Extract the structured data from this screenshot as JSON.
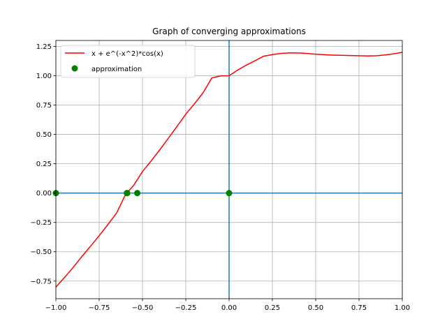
{
  "chart_data": {
    "type": "line",
    "title": "Graph of converging approximations",
    "xlabel": "",
    "ylabel": "",
    "xlim": [
      -1.0,
      1.0
    ],
    "ylim": [
      -0.9,
      1.3
    ],
    "x_ticks": [
      -1.0,
      -0.75,
      -0.5,
      -0.25,
      0.0,
      0.25,
      0.5,
      0.75,
      1.0
    ],
    "x_tick_labels": [
      "−1.00",
      "−0.75",
      "−0.50",
      "−0.25",
      "0.00",
      "0.25",
      "0.50",
      "0.75",
      "1.00"
    ],
    "y_ticks": [
      -0.75,
      -0.5,
      -0.25,
      0.0,
      0.25,
      0.5,
      0.75,
      1.0,
      1.25
    ],
    "y_tick_labels": [
      "−0.75",
      "−0.50",
      "−0.25",
      "0.00",
      "0.25",
      "0.50",
      "0.75",
      "1.00",
      "1.25"
    ],
    "grid": true,
    "legend_position": "top-left",
    "reference_lines": {
      "horizontal_y": 0.0,
      "vertical_x": 0.0,
      "color": "#1f77b4"
    },
    "series": [
      {
        "name": "x + e^(-x^2)*cos(x)",
        "kind": "line",
        "color": "#ff0000",
        "x": [
          -1.0,
          -0.95,
          -0.9,
          -0.85,
          -0.8,
          -0.75,
          -0.7,
          -0.65,
          -0.6,
          -0.55,
          -0.5,
          -0.45,
          -0.4,
          -0.35,
          -0.3,
          -0.25,
          -0.2,
          -0.15,
          -0.1,
          -0.05,
          0.0,
          0.05,
          0.1,
          0.15,
          0.2,
          0.25,
          0.3,
          0.35,
          0.4,
          0.45,
          0.5,
          0.55,
          0.6,
          0.65,
          0.7,
          0.75,
          0.8,
          0.85,
          0.9,
          0.95,
          1.0
        ],
        "y": [
          -0.801,
          -0.719,
          -0.633,
          -0.541,
          -0.453,
          -0.363,
          -0.269,
          -0.171,
          -0.018,
          0.0675,
          0.1834,
          0.2738,
          0.3687,
          0.4678,
          0.5694,
          0.6725,
          0.7604,
          0.8548,
          0.9802,
          0.9985,
          1.0,
          1.0485,
          1.0902,
          1.1277,
          1.1664,
          1.1794,
          1.1897,
          1.1945,
          1.1936,
          1.1891,
          1.1834,
          1.1787,
          1.1755,
          1.1733,
          1.1716,
          1.1699,
          1.1685,
          1.1698,
          1.1767,
          1.1863,
          1.1988
        ]
      },
      {
        "name": "approximation",
        "kind": "scatter",
        "color": "#008000",
        "x": [
          -1.0,
          -0.59,
          -0.588,
          -0.53,
          0.0
        ],
        "y": [
          0.0,
          0.0,
          0.0,
          0.0,
          0.0
        ]
      }
    ]
  }
}
